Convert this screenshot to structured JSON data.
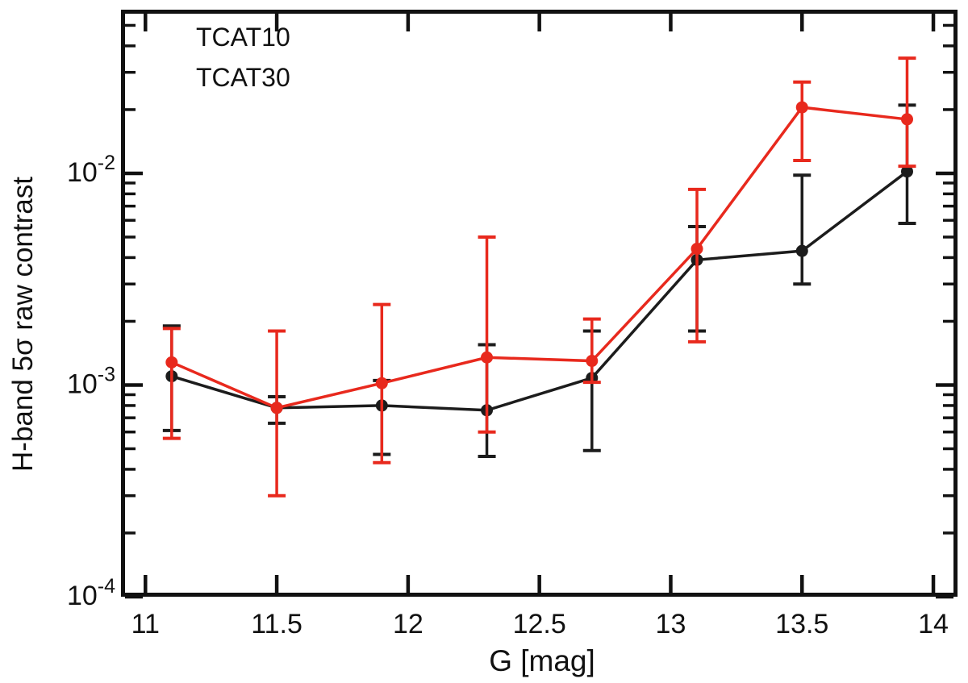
{
  "chart_data": {
    "type": "line",
    "title": "",
    "xlabel": "G [mag]",
    "ylabel": "H-band 5σ raw contrast",
    "x_scale": "linear",
    "y_scale": "log",
    "xlim": [
      10.907,
      14.092
    ],
    "ylim": [
      0.0001,
      0.0593
    ],
    "x_ticks": [
      11,
      11.5,
      12,
      12.5,
      13,
      13.5,
      14
    ],
    "x_tick_labels": [
      "11",
      "11.5",
      "12",
      "12.5",
      "13",
      "13.5",
      "14"
    ],
    "y_tick_label_base": "10",
    "y_major_tick_exponents": [
      -4,
      -3,
      -2
    ],
    "grid": false,
    "legend_position": "top-left",
    "frame_color": "#111111",
    "x": [
      11.1,
      11.5,
      11.9,
      12.3,
      12.7,
      13.1,
      13.5,
      13.9
    ],
    "series": [
      {
        "name": "TCAT10",
        "color": "#1c1c1c",
        "values": [
          0.0011,
          0.00078,
          0.0008,
          0.00076,
          0.00108,
          0.0039,
          0.0043,
          0.0102
        ],
        "err_low": [
          0.00061,
          0.00066,
          0.00047,
          0.00046,
          0.00049,
          0.0018,
          0.003,
          0.0058
        ],
        "err_high": [
          0.0019,
          0.00088,
          0.00105,
          0.00155,
          0.0018,
          0.0056,
          0.0098,
          0.021
        ]
      },
      {
        "name": "TCAT30",
        "color": "#e8291d",
        "values": [
          0.00128,
          0.00078,
          0.00102,
          0.00135,
          0.0013,
          0.0044,
          0.0205,
          0.018
        ],
        "err_low": [
          0.00056,
          0.0003,
          0.00043,
          0.0006,
          0.00103,
          0.0016,
          0.0115,
          0.0108
        ],
        "err_high": [
          0.00185,
          0.0018,
          0.0024,
          0.005,
          0.00205,
          0.0084,
          0.027,
          0.035
        ]
      }
    ]
  }
}
